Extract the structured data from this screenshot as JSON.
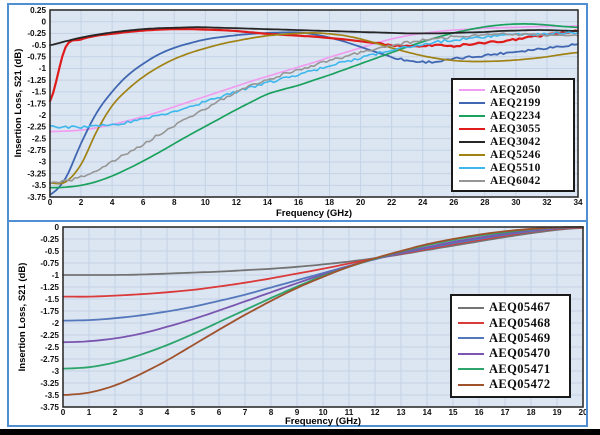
{
  "figure": {
    "background": "#ffffff",
    "outer_border_color": "#4f8fd2",
    "bottom_bar_color": "#000000",
    "plot_frame_color": "#2f2f2f"
  },
  "chart_data": [
    {
      "type": "line",
      "title": "",
      "xlabel": "Frequency (GHz)",
      "ylabel": "Insertion Loss, S21 (dB)",
      "xlim": [
        0,
        34
      ],
      "xtick_step": 2,
      "ylim": [
        -3.75,
        0.25
      ],
      "ytick_step": 0.25,
      "x_step": 1,
      "grid": true,
      "plot_bg": "#dce6f2",
      "grid_color": "#c3d2e5",
      "legend_position": "inside-right-middle",
      "series": [
        {
          "name": "AEQ2050",
          "color": "#f09df0",
          "width": 1.7,
          "values": [
            -2.35,
            -2.34,
            -2.32,
            -2.27,
            -2.2,
            -2.12,
            -2.03,
            -1.93,
            -1.82,
            -1.71,
            -1.6,
            -1.49,
            -1.38,
            -1.27,
            -1.17,
            -1.07,
            -0.97,
            -0.87,
            -0.76,
            -0.66,
            -0.56,
            -0.46,
            -0.37,
            -0.3,
            -0.25,
            -0.21,
            -0.18,
            -0.16,
            -0.14,
            -0.13,
            -0.12,
            -0.11,
            -0.1,
            -0.1,
            -0.09
          ]
        },
        {
          "name": "AEQ2199",
          "color": "#4067b1",
          "width": 1.8,
          "noise": 0.025,
          "noise_start": 22,
          "values": [
            -3.7,
            -3.35,
            -2.6,
            -1.95,
            -1.5,
            -1.15,
            -0.9,
            -0.7,
            -0.56,
            -0.46,
            -0.38,
            -0.33,
            -0.29,
            -0.26,
            -0.24,
            -0.23,
            -0.23,
            -0.27,
            -0.34,
            -0.43,
            -0.54,
            -0.65,
            -0.75,
            -0.83,
            -0.86,
            -0.85,
            -0.8,
            -0.76,
            -0.72,
            -0.68,
            -0.64,
            -0.6,
            -0.56,
            -0.52,
            -0.48
          ]
        },
        {
          "name": "AEQ2234",
          "color": "#1ba15e",
          "width": 1.7,
          "values": [
            -3.55,
            -3.54,
            -3.5,
            -3.42,
            -3.3,
            -3.15,
            -2.98,
            -2.8,
            -2.61,
            -2.42,
            -2.24,
            -2.06,
            -1.88,
            -1.71,
            -1.55,
            -1.45,
            -1.36,
            -1.25,
            -1.14,
            -1.02,
            -0.9,
            -0.78,
            -0.66,
            -0.54,
            -0.43,
            -0.33,
            -0.24,
            -0.17,
            -0.11,
            -0.07,
            -0.05,
            -0.05,
            -0.07,
            -0.1,
            -0.12
          ]
        },
        {
          "name": "AEQ3055",
          "color": "#e01b1b",
          "width": 2.2,
          "noise": 0.02,
          "noise_start": 21,
          "values": [
            -1.7,
            -0.55,
            -0.38,
            -0.3,
            -0.26,
            -0.22,
            -0.19,
            -0.17,
            -0.16,
            -0.16,
            -0.17,
            -0.18,
            -0.2,
            -0.23,
            -0.26,
            -0.28,
            -0.3,
            -0.32,
            -0.35,
            -0.38,
            -0.42,
            -0.46,
            -0.5,
            -0.53,
            -0.52,
            -0.5,
            -0.52,
            -0.48,
            -0.45,
            -0.42,
            -0.38,
            -0.33,
            -0.28,
            -0.24,
            -0.2
          ]
        },
        {
          "name": "AEQ3042",
          "color": "#262626",
          "width": 1.8,
          "values": [
            -0.5,
            -0.42,
            -0.34,
            -0.28,
            -0.23,
            -0.19,
            -0.16,
            -0.14,
            -0.13,
            -0.12,
            -0.12,
            -0.13,
            -0.14,
            -0.15,
            -0.16,
            -0.17,
            -0.18,
            -0.19,
            -0.2,
            -0.21,
            -0.22,
            -0.23,
            -0.24,
            -0.25,
            -0.25,
            -0.25,
            -0.24,
            -0.23,
            -0.22,
            -0.2,
            -0.19,
            -0.18,
            -0.18,
            -0.19,
            -0.2
          ]
        },
        {
          "name": "AEQ5246",
          "color": "#a08214",
          "width": 1.7,
          "values": [
            -3.45,
            -3.43,
            -3.05,
            -2.35,
            -1.8,
            -1.45,
            -1.18,
            -0.97,
            -0.8,
            -0.67,
            -0.57,
            -0.48,
            -0.41,
            -0.35,
            -0.3,
            -0.27,
            -0.25,
            -0.24,
            -0.26,
            -0.3,
            -0.37,
            -0.46,
            -0.56,
            -0.65,
            -0.73,
            -0.79,
            -0.83,
            -0.85,
            -0.85,
            -0.84,
            -0.82,
            -0.79,
            -0.75,
            -0.7,
            -0.66
          ]
        },
        {
          "name": "AEQ5510",
          "color": "#3db7ec",
          "width": 1.6,
          "noise": 0.03,
          "noise_start": 0,
          "values": [
            -2.25,
            -2.26,
            -2.26,
            -2.24,
            -2.2,
            -2.15,
            -2.08,
            -2.0,
            -1.91,
            -1.81,
            -1.71,
            -1.6,
            -1.5,
            -1.4,
            -1.31,
            -1.22,
            -1.13,
            -1.04,
            -0.95,
            -0.86,
            -0.77,
            -0.69,
            -0.61,
            -0.54,
            -0.48,
            -0.43,
            -0.39,
            -0.35,
            -0.32,
            -0.3,
            -0.28,
            -0.27,
            -0.26,
            -0.25,
            -0.24
          ]
        },
        {
          "name": "AEQ6042",
          "color": "#969696",
          "width": 1.6,
          "noise": 0.03,
          "noise_start": 0,
          "values": [
            -3.45,
            -3.42,
            -3.32,
            -3.18,
            -3.0,
            -2.81,
            -2.62,
            -2.42,
            -2.23,
            -2.04,
            -1.86,
            -1.68,
            -1.51,
            -1.36,
            -1.24,
            -1.13,
            -1.03,
            -0.93,
            -0.84,
            -0.75,
            -0.66,
            -0.58,
            -0.51,
            -0.45,
            -0.4,
            -0.36,
            -0.32,
            -0.3,
            -0.28,
            -0.27,
            -0.27,
            -0.28,
            -0.29,
            -0.3,
            -0.3
          ]
        }
      ]
    },
    {
      "type": "line",
      "title": "",
      "xlabel": "Frequency (GHz)",
      "ylabel": "Insertion Loss, S21 (dB)",
      "xlim": [
        0,
        20
      ],
      "xtick_step": 1,
      "ylim": [
        -3.75,
        0
      ],
      "ytick_step": 0.25,
      "x_step": 1,
      "grid": true,
      "plot_bg": "#dce6f2",
      "grid_color": "#c3d2e5",
      "legend_position": "inside-right-middle",
      "series": [
        {
          "name": "AEQ05467",
          "color": "#737373",
          "width": 1.8,
          "values": [
            -1.0,
            -1.0,
            -1.0,
            -0.99,
            -0.97,
            -0.95,
            -0.93,
            -0.9,
            -0.87,
            -0.83,
            -0.78,
            -0.72,
            -0.65,
            -0.57,
            -0.48,
            -0.39,
            -0.3,
            -0.21,
            -0.13,
            -0.06,
            -0.02
          ]
        },
        {
          "name": "AEQ05468",
          "color": "#da3a3a",
          "width": 1.8,
          "values": [
            -1.45,
            -1.45,
            -1.43,
            -1.4,
            -1.36,
            -1.31,
            -1.24,
            -1.16,
            -1.07,
            -0.97,
            -0.87,
            -0.76,
            -0.66,
            -0.56,
            -0.46,
            -0.36,
            -0.27,
            -0.18,
            -0.1,
            -0.04,
            -0.01
          ]
        },
        {
          "name": "AEQ05469",
          "color": "#5577bb",
          "width": 1.8,
          "values": [
            -1.95,
            -1.94,
            -1.9,
            -1.84,
            -1.76,
            -1.66,
            -1.54,
            -1.41,
            -1.26,
            -1.11,
            -0.96,
            -0.81,
            -0.67,
            -0.55,
            -0.44,
            -0.34,
            -0.25,
            -0.16,
            -0.09,
            -0.03,
            0
          ]
        },
        {
          "name": "AEQ05470",
          "color": "#7a56b0",
          "width": 1.8,
          "values": [
            -2.4,
            -2.38,
            -2.32,
            -2.22,
            -2.08,
            -1.92,
            -1.74,
            -1.55,
            -1.36,
            -1.17,
            -0.99,
            -0.82,
            -0.67,
            -0.54,
            -0.42,
            -0.31,
            -0.22,
            -0.14,
            -0.07,
            -0.02,
            0
          ]
        },
        {
          "name": "AEQ05471",
          "color": "#2da46c",
          "width": 1.8,
          "values": [
            -2.95,
            -2.92,
            -2.82,
            -2.66,
            -2.46,
            -2.23,
            -1.98,
            -1.73,
            -1.48,
            -1.24,
            -1.02,
            -0.83,
            -0.66,
            -0.51,
            -0.38,
            -0.27,
            -0.18,
            -0.11,
            -0.05,
            -0.01,
            0
          ]
        },
        {
          "name": "AEQ05472",
          "color": "#a0522d",
          "width": 1.8,
          "values": [
            -3.5,
            -3.45,
            -3.3,
            -3.06,
            -2.78,
            -2.46,
            -2.14,
            -1.83,
            -1.54,
            -1.27,
            -1.04,
            -0.83,
            -0.65,
            -0.5,
            -0.36,
            -0.25,
            -0.16,
            -0.09,
            -0.04,
            -0.01,
            0
          ]
        }
      ]
    }
  ]
}
